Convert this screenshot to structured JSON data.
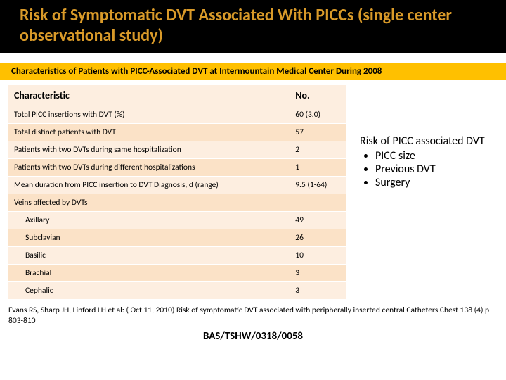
{
  "title": "Risk of Symptomatic DVT Associated With PICCs (single center observational study)",
  "subBanner": "Characteristics of Patients with PICC-Associated DVT at Intermountain Medical Center During 2008",
  "table": {
    "colHeaders": [
      "Characteristic",
      "No."
    ],
    "rows": [
      {
        "label": "Total PICC insertions with DVT (%)",
        "value": "60 (3.0)",
        "indent": false
      },
      {
        "label": "Total distinct patients with DVT",
        "value": "57",
        "indent": false
      },
      {
        "label": "Patients with two DVTs during same hospitalization",
        "value": "2",
        "indent": false
      },
      {
        "label": "Patients with two DVTs during different hospitalizations",
        "value": "1",
        "indent": false
      },
      {
        "label": "Mean duration from PICC insertion to DVT Diagnosis,      d (range)",
        "value": "9.5 (1-64)",
        "indent": false
      },
      {
        "label": "Veins affected by DVTs",
        "value": "",
        "indent": false
      },
      {
        "label": "Axillary",
        "value": "49",
        "indent": true
      },
      {
        "label": "Subclavian",
        "value": "26",
        "indent": true
      },
      {
        "label": "Basilic",
        "value": "10",
        "indent": true
      },
      {
        "label": "Brachial",
        "value": "3",
        "indent": true
      },
      {
        "label": "Cephalic",
        "value": "3",
        "indent": true
      }
    ]
  },
  "sideNote": {
    "title": "Risk of PICC associated DVT",
    "bullets": [
      "PICC size",
      "Previous DVT",
      "Surgery"
    ]
  },
  "citation": "Evans RS, Sharp JH, Linford LH et al:  ( Oct 11, 2010) Risk of symptomatic DVT associated with peripherally inserted central Catheters  Chest 138 (4) p 803-810",
  "footerCode": "BAS/TSHW/0318/0058",
  "colors": {
    "titleText": "#d99a29",
    "titleBg": "#000000",
    "bannerBg": "#ffc000",
    "rowBgA": "#fdeee0",
    "rowBgB": "#fbe2c7"
  }
}
